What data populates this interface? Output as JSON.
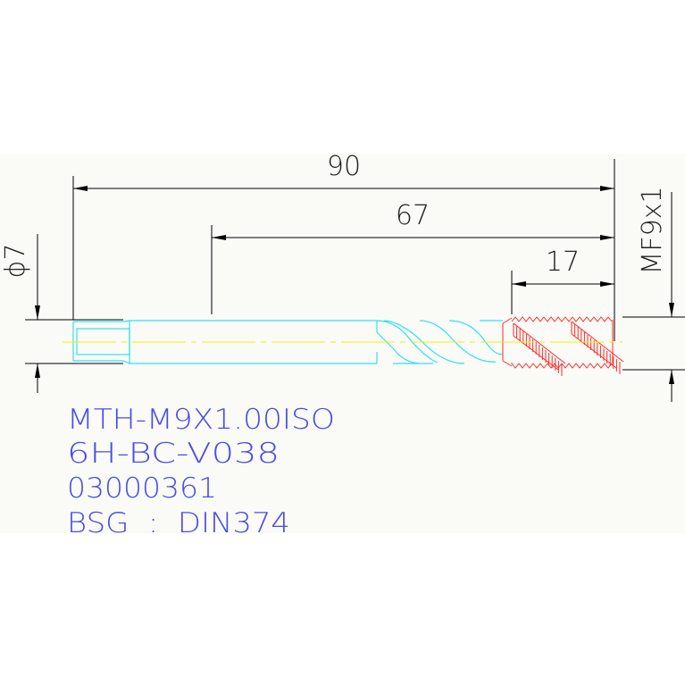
{
  "drawing": {
    "dimensions": {
      "overall_length": "90",
      "shank_to_tip": "67",
      "thread_length": "17",
      "shank_diameter": "ϕ7",
      "thread_size": "MF9x1"
    },
    "notes": [
      "MTH-M9X1.00ISO",
      "6H-BC-V038",
      "03000361",
      "BSG  :  DIN374"
    ],
    "colors": {
      "background_band": "#fafbf7",
      "tool_body": "#33e0ee",
      "thread": "#ff2a2a",
      "centerline": "#f0f000",
      "dimensions": "#000000",
      "notes": "#4b4be6"
    }
  }
}
